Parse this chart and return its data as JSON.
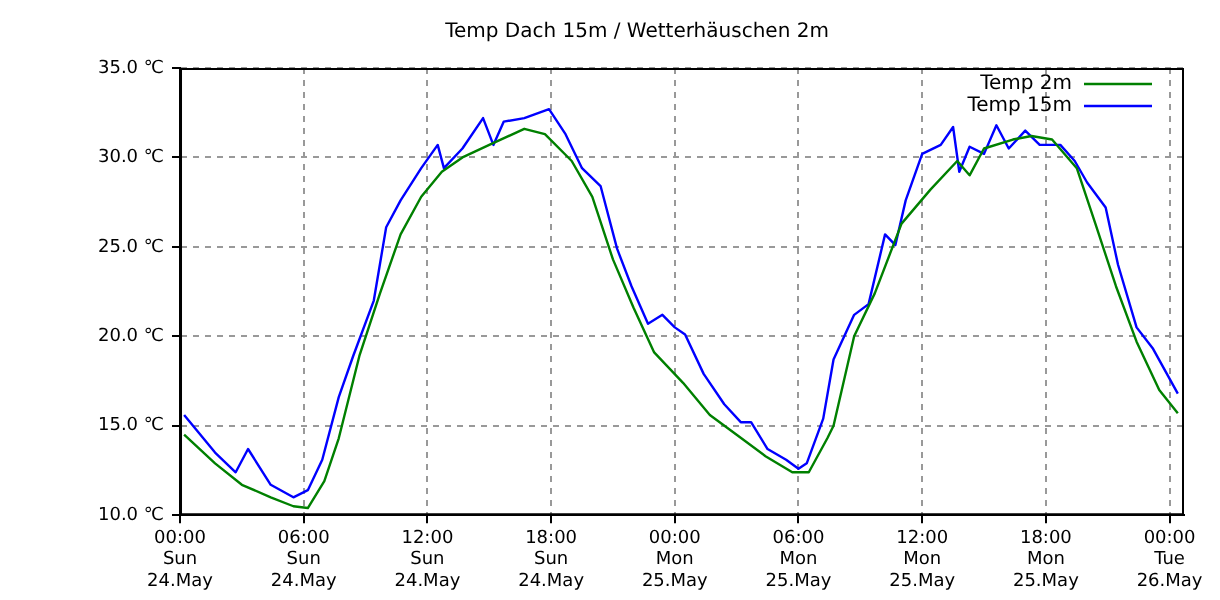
{
  "chart_data": {
    "type": "line",
    "title": "Temp Dach 15m / Wetterhäuschen 2m",
    "xlim": [
      "--05-24T00:00",
      "--05-26T00:42"
    ],
    "xticks": [
      {
        "value": "--05-24T00:00",
        "label": "00:00\nSun\n24.May"
      },
      {
        "value": "--05-24T06:00",
        "label": "06:00\nSun\n24.May"
      },
      {
        "value": "--05-24T12:00",
        "label": "12:00\nSun\n24.May"
      },
      {
        "value": "--05-24T18:00",
        "label": "18:00\nSun\n24.May"
      },
      {
        "value": "--05-25T00:00",
        "label": "00:00\nMon\n25.May"
      },
      {
        "value": "--05-25T06:00",
        "label": "06:00\nMon\n25.May"
      },
      {
        "value": "--05-25T12:00",
        "label": "12:00\nMon\n25.May"
      },
      {
        "value": "--05-25T18:00",
        "label": "18:00\nMon\n25.May"
      },
      {
        "value": "--05-26T00:00",
        "label": "00:00\nTue\n26.May"
      }
    ],
    "ylim": [
      10,
      35
    ],
    "yticks": [
      {
        "value": 10,
        "label": "10.0 ℃"
      },
      {
        "value": 15,
        "label": "15.0 ℃"
      },
      {
        "value": 20,
        "label": "20.0 ℃"
      },
      {
        "value": 25,
        "label": "25.0 ℃"
      },
      {
        "value": 30,
        "label": "30.0 ℃"
      },
      {
        "value": 35,
        "label": "35.0 ℃"
      }
    ],
    "grid": true,
    "legend": "top right",
    "marker": "none",
    "line_style": "solid",
    "series": [
      {
        "name": "Temp 2m",
        "color": "#008000",
        "x": [
          "--05-24T00:12",
          "--05-24T01:42",
          "--05-24T03:00",
          "--05-24T04:24",
          "--05-24T05:30",
          "--05-24T06:12",
          "--05-24T07:00",
          "--05-24T07:42",
          "--05-24T08:42",
          "--05-24T09:42",
          "--05-24T10:42",
          "--05-24T11:42",
          "--05-24T12:42",
          "--05-24T13:42",
          "--05-24T15:00",
          "--05-24T16:42",
          "--05-24T17:42",
          "--05-24T19:00",
          "--05-24T20:00",
          "--05-24T21:00",
          "--05-24T22:00",
          "--05-24T23:00",
          "--05-25T00:24",
          "--05-25T01:42",
          "--05-25T03:00",
          "--05-25T04:24",
          "--05-25T05:42",
          "--05-25T06:30",
          "--05-25T07:24",
          "--05-25T07:42",
          "--05-25T08:42",
          "--05-25T09:42",
          "--05-25T11:00",
          "--05-25T12:24",
          "--05-25T13:42",
          "--05-25T14:18",
          "--05-25T15:00",
          "--05-25T16:24",
          "--05-25T17:18",
          "--05-25T18:18",
          "--05-25T19:30",
          "--05-25T20:24",
          "--05-25T21:24",
          "--05-25T22:24",
          "--05-25T23:30",
          "--05-26T00:24"
        ],
        "values": [
          14.5,
          12.9,
          11.7,
          11.0,
          10.5,
          10.4,
          11.9,
          14.3,
          18.9,
          22.4,
          25.7,
          27.8,
          29.2,
          30.0,
          30.7,
          31.6,
          31.3,
          29.8,
          27.8,
          24.3,
          21.6,
          19.1,
          17.4,
          15.6,
          14.5,
          13.3,
          12.4,
          12.4,
          14.3,
          15.0,
          20.0,
          22.4,
          26.3,
          28.2,
          29.8,
          29.0,
          30.5,
          31.0,
          31.2,
          31.0,
          29.4,
          26.3,
          22.8,
          19.7,
          17.0,
          15.7
        ]
      },
      {
        "name": "Temp 15m",
        "color": "#0000ff",
        "x": [
          "--05-24T00:12",
          "--05-24T01:42",
          "--05-24T02:42",
          "--05-24T03:18",
          "--05-24T04:24",
          "--05-24T05:30",
          "--05-24T06:12",
          "--05-24T06:54",
          "--05-24T07:42",
          "--05-24T08:24",
          "--05-24T09:24",
          "--05-24T10:00",
          "--05-24T10:42",
          "--05-24T11:42",
          "--05-24T12:30",
          "--05-24T12:48",
          "--05-24T13:42",
          "--05-24T14:42",
          "--05-24T15:12",
          "--05-24T15:42",
          "--05-24T16:42",
          "--05-24T17:54",
          "--05-24T18:42",
          "--05-24T19:30",
          "--05-24T20:24",
          "--05-24T21:12",
          "--05-24T21:54",
          "--05-24T22:42",
          "--05-24T23:24",
          "--05-25T00:00",
          "--05-25T00:30",
          "--05-25T01:24",
          "--05-25T02:24",
          "--05-25T03:12",
          "--05-25T03:42",
          "--05-25T04:30",
          "--05-25T05:24",
          "--05-25T06:00",
          "--05-25T06:24",
          "--05-25T07:12",
          "--05-25T07:42",
          "--05-25T08:42",
          "--05-25T09:24",
          "--05-25T10:12",
          "--05-25T10:42",
          "--05-25T11:12",
          "--05-25T12:00",
          "--05-25T12:54",
          "--05-25T13:30",
          "--05-25T13:48",
          "--05-25T14:18",
          "--05-25T15:00",
          "--05-25T15:36",
          "--05-25T16:12",
          "--05-25T17:00",
          "--05-25T17:42",
          "--05-25T18:42",
          "--05-25T19:24",
          "--05-25T20:00",
          "--05-25T20:54",
          "--05-25T21:30",
          "--05-25T22:24",
          "--05-25T23:12",
          "--05-26T00:24"
        ],
        "values": [
          15.6,
          13.5,
          12.4,
          13.7,
          11.7,
          11.0,
          11.4,
          13.1,
          16.6,
          18.9,
          22.0,
          26.1,
          27.6,
          29.4,
          30.7,
          29.4,
          30.5,
          32.2,
          30.7,
          32.0,
          32.2,
          32.7,
          31.3,
          29.4,
          28.4,
          24.9,
          22.8,
          20.7,
          21.2,
          20.5,
          20.1,
          17.9,
          16.2,
          15.2,
          15.2,
          13.7,
          13.1,
          12.6,
          12.9,
          15.4,
          18.7,
          21.2,
          21.8,
          25.7,
          25.1,
          27.6,
          30.2,
          30.7,
          31.7,
          29.2,
          30.6,
          30.2,
          31.8,
          30.5,
          31.5,
          30.7,
          30.7,
          29.8,
          28.6,
          27.2,
          24.0,
          20.5,
          19.3,
          16.8
        ]
      }
    ]
  }
}
